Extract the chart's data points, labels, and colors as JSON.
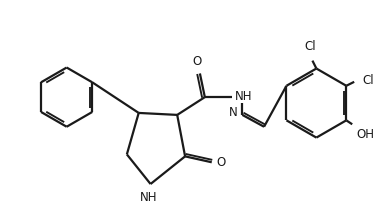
{
  "background": "#ffffff",
  "line_color": "#1a1a1a",
  "text_color": "#1a1a1a",
  "bond_lw": 1.6,
  "font_size": 8.5,
  "labels": {
    "Cl": "Cl",
    "O": "O",
    "NH": "NH",
    "N": "N",
    "OH": "OH"
  }
}
